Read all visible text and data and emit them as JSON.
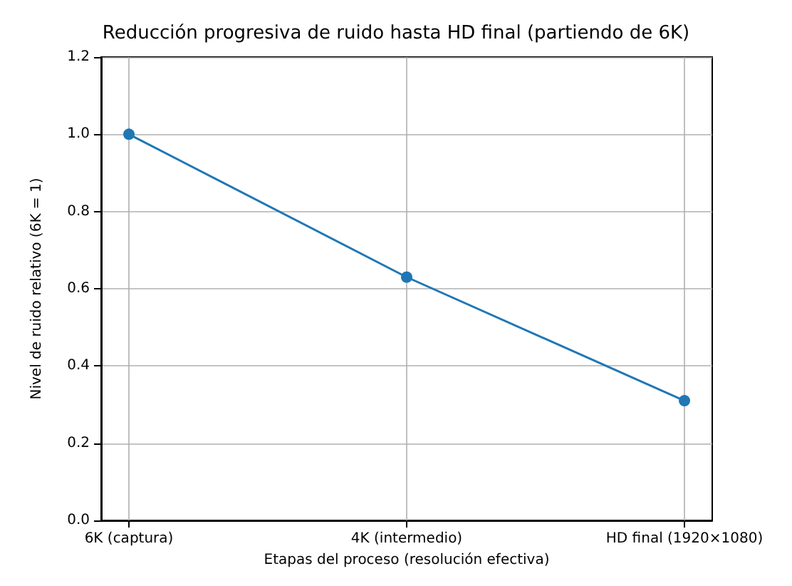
{
  "chart_data": {
    "type": "line",
    "title": "Reducción progresiva de ruido hasta HD final (partiendo de 6K)",
    "xlabel": "Etapas del proceso (resolución efectiva)",
    "ylabel": "Nivel de ruido relativo (6K = 1)",
    "categories": [
      "6K (captura)",
      "4K (intermedio)",
      "HD final (1920×1080)"
    ],
    "series": [
      {
        "color": "#1f77b4",
        "values": [
          1.0,
          0.63,
          0.31
        ]
      }
    ],
    "ylim": [
      0,
      1.2
    ],
    "yticks": [
      {
        "value": 0,
        "label": "0.0"
      },
      0.2,
      0.4,
      0.6,
      0.8,
      {
        "value": 1,
        "label": "1.0"
      },
      1.2
    ],
    "grid": true,
    "marker": "circle",
    "line_style": "solid"
  }
}
